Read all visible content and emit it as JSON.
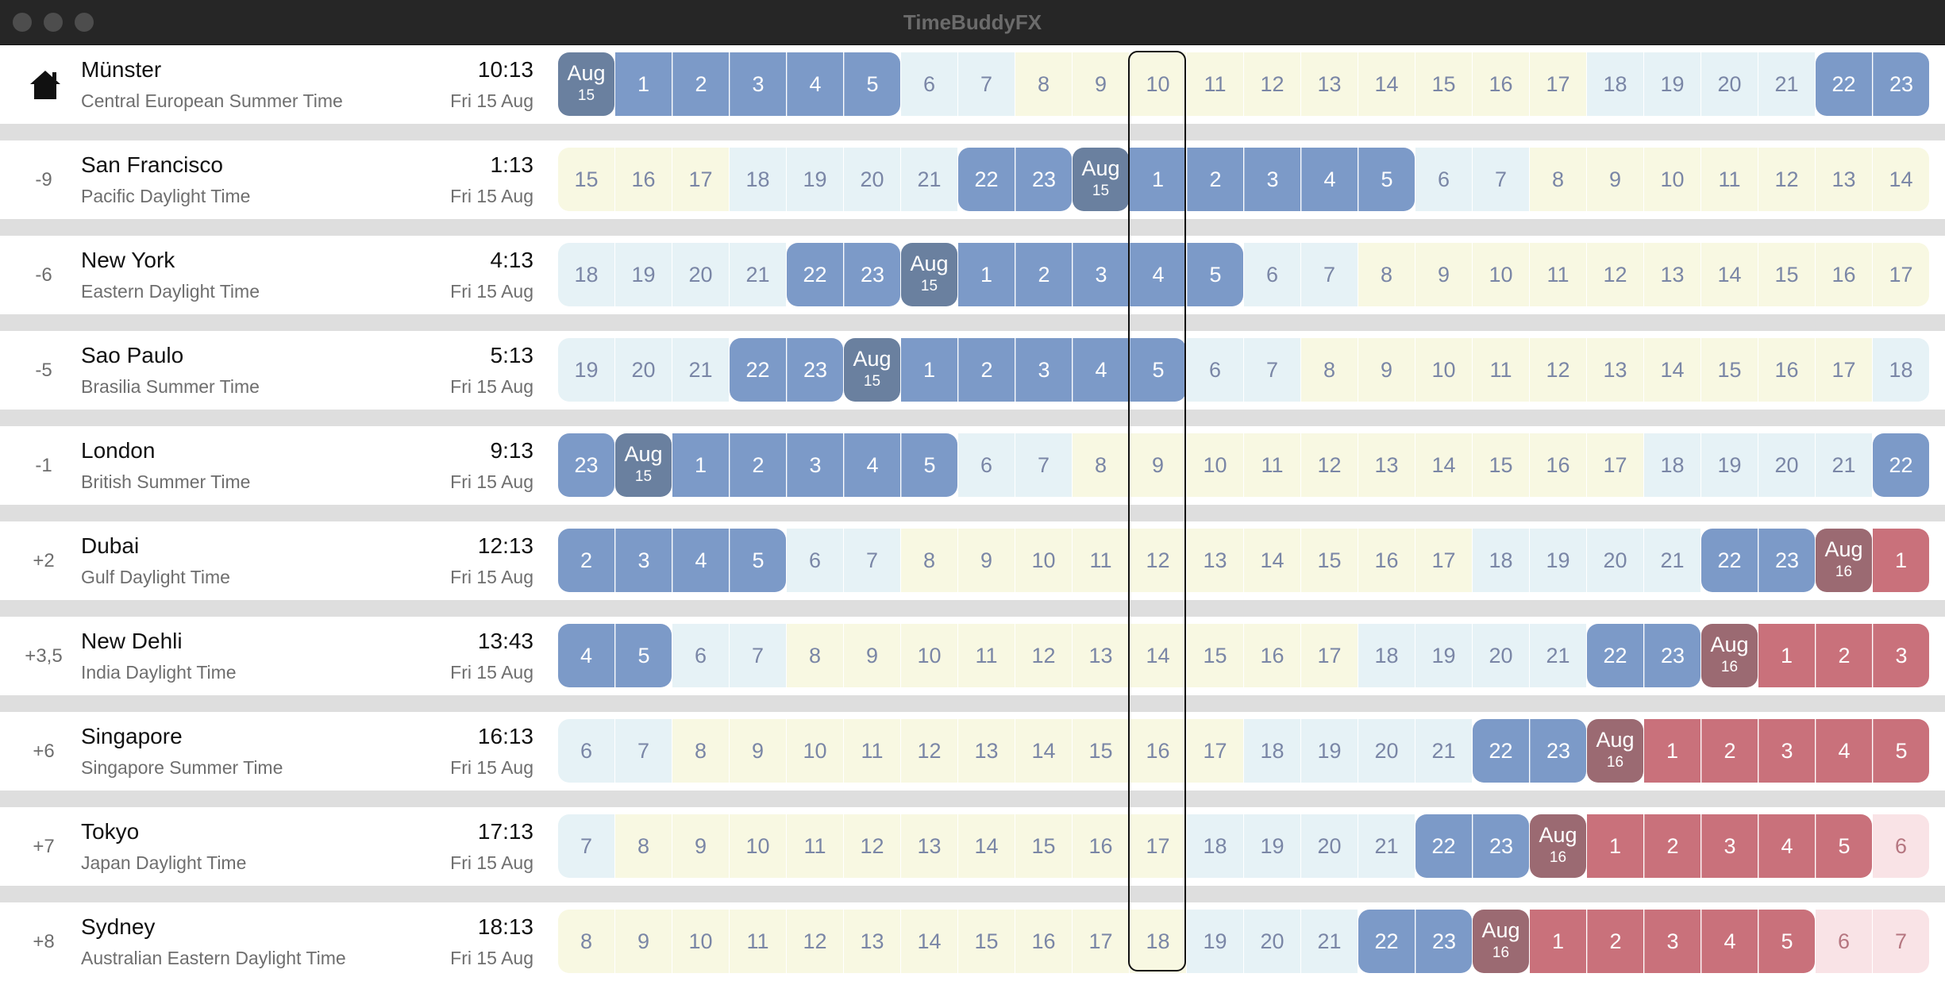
{
  "window": {
    "title": "TimeBuddyFX"
  },
  "colors": {
    "day": "#f8f8e2",
    "twilight": "#e6f2f6",
    "night": "#7c9ac8",
    "night_next_day": "#c9717b",
    "twilight_next_day": "#f9e3e6",
    "midnight": "#6a809f",
    "midnight_next_day": "#9b6a72",
    "row_separator": "#dedede",
    "highlight_border": "#111111"
  },
  "highlight_column": 10,
  "rows": [
    {
      "offset": "",
      "home": true,
      "home_icon": "home-icon",
      "city": "Münster",
      "zone": "Central European Summer Time",
      "time": "10:13",
      "date": "Fri 15 Aug",
      "hours": [
        "Aug",
        "1",
        "2",
        "3",
        "4",
        "5",
        "6",
        "7",
        "8",
        "9",
        "10",
        "11",
        "12",
        "13",
        "14",
        "15",
        "16",
        "17",
        "18",
        "19",
        "20",
        "21",
        "22",
        "23"
      ],
      "types": [
        "mid",
        "night",
        "night",
        "night",
        "night",
        "night",
        "twi",
        "twi",
        "day",
        "day",
        "day",
        "day",
        "day",
        "day",
        "day",
        "day",
        "day",
        "day",
        "twi",
        "twi",
        "twi",
        "twi",
        "night",
        "night"
      ],
      "sub": [
        "15",
        "",
        "",
        "",
        "",
        "",
        "",
        "",
        "",
        "",
        "",
        "",
        "",
        "",
        "",
        "",
        "",
        "",
        "",
        "",
        "",
        "",
        "",
        ""
      ]
    },
    {
      "offset": "-9",
      "home": false,
      "city": "San Francisco",
      "zone": "Pacific Daylight Time",
      "time": "1:13",
      "date": "Fri 15 Aug",
      "hours": [
        "15",
        "16",
        "17",
        "18",
        "19",
        "20",
        "21",
        "22",
        "23",
        "Aug",
        "1",
        "2",
        "3",
        "4",
        "5",
        "6",
        "7",
        "8",
        "9",
        "10",
        "11",
        "12",
        "13",
        "14"
      ],
      "types": [
        "day",
        "day",
        "day",
        "twi",
        "twi",
        "twi",
        "twi",
        "night",
        "night",
        "mid",
        "night",
        "night",
        "night",
        "night",
        "night",
        "twi",
        "twi",
        "day",
        "day",
        "day",
        "day",
        "day",
        "day",
        "day"
      ],
      "sub": [
        "",
        "",
        "",
        "",
        "",
        "",
        "",
        "",
        "",
        "15",
        "",
        "",
        "",
        "",
        "",
        "",
        "",
        "",
        "",
        "",
        "",
        "",
        "",
        ""
      ]
    },
    {
      "offset": "-6",
      "home": false,
      "city": "New York",
      "zone": "Eastern Daylight Time",
      "time": "4:13",
      "date": "Fri 15 Aug",
      "hours": [
        "18",
        "19",
        "20",
        "21",
        "22",
        "23",
        "Aug",
        "1",
        "2",
        "3",
        "4",
        "5",
        "6",
        "7",
        "8",
        "9",
        "10",
        "11",
        "12",
        "13",
        "14",
        "15",
        "16",
        "17"
      ],
      "types": [
        "twi",
        "twi",
        "twi",
        "twi",
        "night",
        "night",
        "mid",
        "night",
        "night",
        "night",
        "night",
        "night",
        "twi",
        "twi",
        "day",
        "day",
        "day",
        "day",
        "day",
        "day",
        "day",
        "day",
        "day",
        "day"
      ],
      "sub": [
        "",
        "",
        "",
        "",
        "",
        "",
        "15",
        "",
        "",
        "",
        "",
        "",
        "",
        "",
        "",
        "",
        "",
        "",
        "",
        "",
        "",
        "",
        "",
        ""
      ]
    },
    {
      "offset": "-5",
      "home": false,
      "city": "Sao Paulo",
      "zone": "Brasilia Summer Time",
      "time": "5:13",
      "date": "Fri 15 Aug",
      "hours": [
        "19",
        "20",
        "21",
        "22",
        "23",
        "Aug",
        "1",
        "2",
        "3",
        "4",
        "5",
        "6",
        "7",
        "8",
        "9",
        "10",
        "11",
        "12",
        "13",
        "14",
        "15",
        "16",
        "17",
        "18"
      ],
      "types": [
        "twi",
        "twi",
        "twi",
        "night",
        "night",
        "mid",
        "night",
        "night",
        "night",
        "night",
        "night",
        "twi",
        "twi",
        "day",
        "day",
        "day",
        "day",
        "day",
        "day",
        "day",
        "day",
        "day",
        "day",
        "twi"
      ],
      "sub": [
        "",
        "",
        "",
        "",
        "",
        "15",
        "",
        "",
        "",
        "",
        "",
        "",
        "",
        "",
        "",
        "",
        "",
        "",
        "",
        "",
        "",
        "",
        "",
        ""
      ]
    },
    {
      "offset": "-1",
      "home": false,
      "city": "London",
      "zone": "British Summer Time",
      "time": "9:13",
      "date": "Fri 15 Aug",
      "hours": [
        "23",
        "Aug",
        "1",
        "2",
        "3",
        "4",
        "5",
        "6",
        "7",
        "8",
        "9",
        "10",
        "11",
        "12",
        "13",
        "14",
        "15",
        "16",
        "17",
        "18",
        "19",
        "20",
        "21",
        "22"
      ],
      "types": [
        "night",
        "mid",
        "night",
        "night",
        "night",
        "night",
        "night",
        "twi",
        "twi",
        "day",
        "day",
        "day",
        "day",
        "day",
        "day",
        "day",
        "day",
        "day",
        "day",
        "twi",
        "twi",
        "twi",
        "twi",
        "night"
      ],
      "sub": [
        "",
        "15",
        "",
        "",
        "",
        "",
        "",
        "",
        "",
        "",
        "",
        "",
        "",
        "",
        "",
        "",
        "",
        "",
        "",
        "",
        "",
        "",
        "",
        ""
      ]
    },
    {
      "offset": "+2",
      "home": false,
      "city": "Dubai",
      "zone": "Gulf Daylight Time",
      "time": "12:13",
      "date": "Fri 15 Aug",
      "hours": [
        "2",
        "3",
        "4",
        "5",
        "6",
        "7",
        "8",
        "9",
        "10",
        "11",
        "12",
        "13",
        "14",
        "15",
        "16",
        "17",
        "18",
        "19",
        "20",
        "21",
        "22",
        "23",
        "Aug",
        "1"
      ],
      "types": [
        "night",
        "night",
        "night",
        "night",
        "twi",
        "twi",
        "day",
        "day",
        "day",
        "day",
        "day",
        "day",
        "day",
        "day",
        "day",
        "day",
        "twi",
        "twi",
        "twi",
        "twi",
        "night",
        "night",
        "midn",
        "nightn"
      ],
      "sub": [
        "",
        "",
        "",
        "",
        "",
        "",
        "",
        "",
        "",
        "",
        "",
        "",
        "",
        "",
        "",
        "",
        "",
        "",
        "",
        "",
        "",
        "",
        "16",
        ""
      ]
    },
    {
      "offset": "+3,5",
      "home": false,
      "city": "New Dehli",
      "zone": "India Daylight Time",
      "time": "13:43",
      "date": "Fri 15 Aug",
      "hours": [
        "4",
        "5",
        "6",
        "7",
        "8",
        "9",
        "10",
        "11",
        "12",
        "13",
        "14",
        "15",
        "16",
        "17",
        "18",
        "19",
        "20",
        "21",
        "22",
        "23",
        "Aug",
        "1",
        "2",
        "3"
      ],
      "types": [
        "night",
        "night",
        "twi",
        "twi",
        "day",
        "day",
        "day",
        "day",
        "day",
        "day",
        "day",
        "day",
        "day",
        "day",
        "twi",
        "twi",
        "twi",
        "twi",
        "night",
        "night",
        "midn",
        "nightn",
        "nightn",
        "nightn"
      ],
      "sub": [
        "",
        "",
        "",
        "",
        "",
        "",
        "",
        "",
        "",
        "",
        "",
        "",
        "",
        "",
        "",
        "",
        "",
        "",
        "",
        "",
        "16",
        "",
        "",
        ""
      ]
    },
    {
      "offset": "+6",
      "home": false,
      "city": "Singapore",
      "zone": "Singapore Summer Time",
      "time": "16:13",
      "date": "Fri 15 Aug",
      "hours": [
        "6",
        "7",
        "8",
        "9",
        "10",
        "11",
        "12",
        "13",
        "14",
        "15",
        "16",
        "17",
        "18",
        "19",
        "20",
        "21",
        "22",
        "23",
        "Aug",
        "1",
        "2",
        "3",
        "4",
        "5"
      ],
      "types": [
        "twi",
        "twi",
        "day",
        "day",
        "day",
        "day",
        "day",
        "day",
        "day",
        "day",
        "day",
        "day",
        "twi",
        "twi",
        "twi",
        "twi",
        "night",
        "night",
        "midn",
        "nightn",
        "nightn",
        "nightn",
        "nightn",
        "nightn"
      ],
      "sub": [
        "",
        "",
        "",
        "",
        "",
        "",
        "",
        "",
        "",
        "",
        "",
        "",
        "",
        "",
        "",
        "",
        "",
        "",
        "16",
        "",
        "",
        "",
        "",
        ""
      ]
    },
    {
      "offset": "+7",
      "home": false,
      "city": "Tokyo",
      "zone": "Japan Daylight Time",
      "time": "17:13",
      "date": "Fri 15 Aug",
      "hours": [
        "7",
        "8",
        "9",
        "10",
        "11",
        "12",
        "13",
        "14",
        "15",
        "16",
        "17",
        "18",
        "19",
        "20",
        "21",
        "22",
        "23",
        "Aug",
        "1",
        "2",
        "3",
        "4",
        "5",
        "6"
      ],
      "types": [
        "twi",
        "day",
        "day",
        "day",
        "day",
        "day",
        "day",
        "day",
        "day",
        "day",
        "day",
        "twi",
        "twi",
        "twi",
        "twi",
        "night",
        "night",
        "midn",
        "nightn",
        "nightn",
        "nightn",
        "nightn",
        "nightn",
        "twin"
      ],
      "sub": [
        "",
        "",
        "",
        "",
        "",
        "",
        "",
        "",
        "",
        "",
        "",
        "",
        "",
        "",
        "",
        "",
        "",
        "16",
        "",
        "",
        "",
        "",
        "",
        ""
      ]
    },
    {
      "offset": "+8",
      "home": false,
      "city": "Sydney",
      "zone": "Australian Eastern Daylight Time",
      "time": "18:13",
      "date": "Fri 15 Aug",
      "hours": [
        "8",
        "9",
        "10",
        "11",
        "12",
        "13",
        "14",
        "15",
        "16",
        "17",
        "18",
        "19",
        "20",
        "21",
        "22",
        "23",
        "Aug",
        "1",
        "2",
        "3",
        "4",
        "5",
        "6",
        "7"
      ],
      "types": [
        "day",
        "day",
        "day",
        "day",
        "day",
        "day",
        "day",
        "day",
        "day",
        "day",
        "day",
        "twi",
        "twi",
        "twi",
        "night",
        "night",
        "midn",
        "nightn",
        "nightn",
        "nightn",
        "nightn",
        "nightn",
        "twin",
        "twin"
      ],
      "sub": [
        "",
        "",
        "",
        "",
        "",
        "",
        "",
        "",
        "",
        "",
        "",
        "",
        "",
        "",
        "",
        "",
        "16",
        "",
        "",
        "",
        "",
        "",
        "",
        ""
      ]
    }
  ]
}
